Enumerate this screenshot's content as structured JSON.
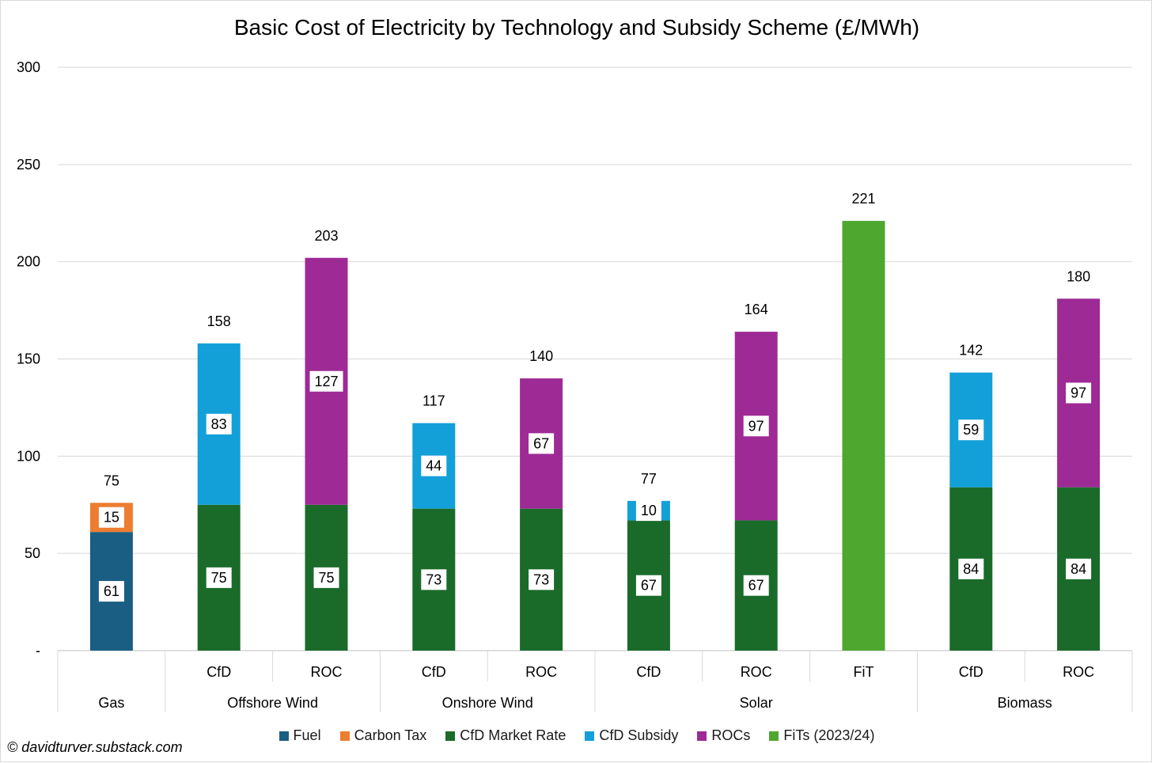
{
  "chart_data": {
    "type": "bar",
    "stacked": true,
    "title": "Basic Cost of Electricity by Technology and Subsidy Scheme (£/MWh)",
    "ylim": [
      0,
      300
    ],
    "yticks": [
      0,
      50,
      100,
      150,
      200,
      250,
      300
    ],
    "ytick_labels": [
      "-",
      "50",
      "100",
      "150",
      "200",
      "250",
      "300"
    ],
    "grid": true,
    "legend_position": "bottom",
    "groups": [
      {
        "name": "Gas",
        "categories": [
          ""
        ]
      },
      {
        "name": "Offshore Wind",
        "categories": [
          "CfD",
          "ROC"
        ]
      },
      {
        "name": "Onshore Wind",
        "categories": [
          "CfD",
          "ROC"
        ]
      },
      {
        "name": "Solar",
        "categories": [
          "CfD",
          "ROC",
          "FiT"
        ]
      },
      {
        "name": "Biomass",
        "categories": [
          "CfD",
          "ROC"
        ]
      }
    ],
    "categories": [
      "",
      "CfD",
      "ROC",
      "CfD",
      "ROC",
      "CfD",
      "ROC",
      "FiT",
      "CfD",
      "ROC"
    ],
    "series": [
      {
        "name": "Fuel",
        "color": "#1b5e83",
        "values": [
          61,
          0,
          0,
          0,
          0,
          0,
          0,
          0,
          0,
          0
        ]
      },
      {
        "name": "Carbon Tax",
        "color": "#ed7d31",
        "values": [
          15,
          0,
          0,
          0,
          0,
          0,
          0,
          0,
          0,
          0
        ]
      },
      {
        "name": "CfD Market Rate",
        "color": "#1a6b2a",
        "values": [
          0,
          75,
          75,
          73,
          73,
          67,
          67,
          0,
          84,
          84
        ]
      },
      {
        "name": "CfD Subsidy",
        "color": "#13a0d8",
        "values": [
          0,
          83,
          0,
          44,
          0,
          10,
          0,
          0,
          59,
          0
        ]
      },
      {
        "name": "ROCs",
        "color": "#9e2a96",
        "values": [
          0,
          0,
          127,
          0,
          67,
          0,
          97,
          0,
          0,
          97
        ]
      },
      {
        "name": "FiTs (2023/24)",
        "color": "#4ea72e",
        "values": [
          0,
          0,
          0,
          0,
          0,
          0,
          0,
          221,
          0,
          0
        ]
      }
    ],
    "data_labels_series": [
      "Fuel",
      "Carbon Tax",
      "CfD Market Rate",
      "CfD Subsidy",
      "ROCs"
    ],
    "totals": [
      "75",
      "158",
      "203",
      "117",
      "140",
      "77",
      "164",
      "221",
      "142",
      "180"
    ]
  },
  "footer": {
    "copyright": "© davidturver.substack.com"
  }
}
